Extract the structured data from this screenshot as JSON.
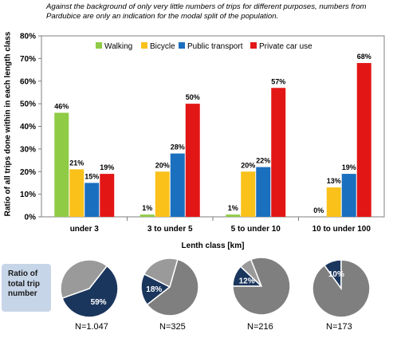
{
  "note": "Against the background of only very little numbers of trips for different purposes, numbers from Pardubice are only an indication for the modal split of the population.",
  "pie_panel": {
    "title": "Ratio of total trip number",
    "n_labels": [
      "N=1.047",
      "N=325",
      "N=216",
      "N=173"
    ]
  },
  "colors": {
    "walking": "#8fcb45",
    "bicycle": "#f9c11a",
    "public_transport": "#1b6fbf",
    "private_car": "#e31616",
    "pie_navy": "#1b365d",
    "pie_grey": "#9a9a9a",
    "pie_dark_grey": "#7f7f7f",
    "ratio_box": "#c7d5e8"
  },
  "chart_data": [
    {
      "type": "bar",
      "title": "",
      "xlabel": "Lenth class [km]",
      "ylabel": "Ratio of all trips done within in each length class",
      "ylim": [
        0,
        80
      ],
      "yticks": [
        "0%",
        "10%",
        "20%",
        "30%",
        "40%",
        "50%",
        "60%",
        "70%",
        "80%"
      ],
      "legend_position": "top",
      "grid": false,
      "categories": [
        "under 3",
        "3 to under 5",
        "5 to under 10",
        "10 to under 100"
      ],
      "series": [
        {
          "name": "Walking",
          "values": [
            46,
            1,
            1,
            0
          ],
          "labels": [
            "46%",
            "1%",
            "1%",
            "0%"
          ]
        },
        {
          "name": "Bicycle",
          "values": [
            21,
            20,
            20,
            13
          ],
          "labels": [
            "21%",
            "20%",
            "20%",
            "13%"
          ]
        },
        {
          "name": "Public transport",
          "values": [
            15,
            28,
            22,
            19
          ],
          "labels": [
            "15%",
            "28%",
            "22%",
            "19%"
          ]
        },
        {
          "name": "Private car use",
          "values": [
            19,
            50,
            57,
            68
          ],
          "labels": [
            "19%",
            "50%",
            "57%",
            "68%"
          ]
        }
      ]
    },
    {
      "type": "pie",
      "title": "",
      "highlighted_labels": [
        "59%",
        "18%",
        "12%",
        "10%"
      ],
      "pies": [
        {
          "n": "N=1.047",
          "highlighted": 59,
          "label": "59%"
        },
        {
          "n": "N=325",
          "highlighted": 18,
          "label": "18%",
          "others": [
            60,
            22
          ]
        },
        {
          "n": "N=216",
          "highlighted": 12,
          "label": "12%",
          "others": [
            81,
            7
          ]
        },
        {
          "n": "N=173",
          "highlighted": 10,
          "label": "10%"
        }
      ]
    }
  ]
}
